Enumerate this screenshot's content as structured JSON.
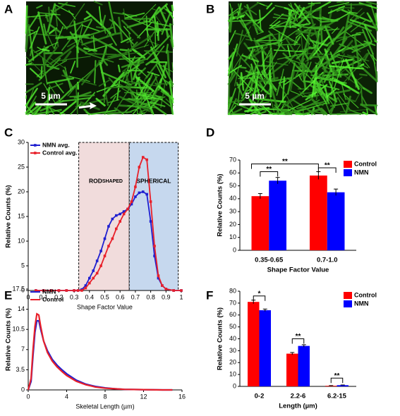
{
  "panel_labels": [
    "A",
    "B",
    "C",
    "D",
    "E",
    "F"
  ],
  "scale_bars": [
    "5 µm",
    "5 µm"
  ],
  "chart_data": [
    {
      "type": "line",
      "xlabel": "Shape Factor Value",
      "ylabel": "Relative Counts (%)",
      "x": [
        0.05,
        0.1,
        0.15,
        0.2,
        0.25,
        0.3,
        0.325,
        0.35,
        0.375,
        0.4,
        0.425,
        0.45,
        0.475,
        0.5,
        0.525,
        0.55,
        0.575,
        0.6,
        0.625,
        0.65,
        0.675,
        0.7,
        0.725,
        0.75,
        0.775,
        0.8,
        0.825,
        0.85,
        0.875,
        0.9,
        0.95,
        1.0
      ],
      "series": [
        {
          "name": "NMN avg.",
          "color": "#1f1fd0",
          "values": [
            0,
            0,
            0,
            0,
            0,
            0,
            0,
            0.2,
            1,
            2.5,
            4,
            6,
            8,
            10.5,
            13,
            14.5,
            15.2,
            15.5,
            16,
            16.5,
            17.5,
            19,
            19.8,
            20,
            19.5,
            14,
            7,
            2.5,
            1,
            0.3,
            0,
            0
          ]
        },
        {
          "name": "Control avg.",
          "color": "#e8202a",
          "values": [
            0,
            0,
            0,
            0,
            0,
            0,
            0,
            0,
            0.5,
            1.5,
            2.5,
            3.5,
            5,
            7,
            9,
            10.5,
            12.5,
            14,
            15.5,
            16.5,
            18,
            21,
            25,
            27,
            26.5,
            18,
            9,
            3,
            1,
            0.3,
            0,
            0
          ]
        }
      ],
      "regions": [
        {
          "label": "ROD",
          "sublabel": "SHAPED",
          "color": "#f1dcdc",
          "xlim": [
            0.33,
            0.66
          ]
        },
        {
          "label": "SPHERICAL",
          "color": "#c6d8ee",
          "xlim": [
            0.66,
            0.98
          ]
        }
      ],
      "markers": true,
      "legend": "upper left",
      "xlim": [
        0,
        1
      ],
      "xticks": [
        0,
        0.1,
        0.2,
        0.3,
        0.4,
        0.5,
        0.6,
        0.7,
        0.8,
        0.9,
        1
      ],
      "ylim": [
        0,
        30
      ],
      "yticks": [
        0,
        5,
        10,
        15,
        20,
        25,
        30
      ]
    },
    {
      "type": "bar",
      "xlabel": "Shape Factor Value",
      "ylabel": "Relative Counts (%)",
      "categories": [
        "0.35-0.65",
        "0.7-1.0"
      ],
      "series": [
        {
          "name": "Control",
          "color": "#ff0000",
          "values": [
            42,
            58
          ],
          "errors": [
            2,
            3
          ]
        },
        {
          "name": "NMN",
          "color": "#0000ff",
          "values": [
            54,
            45
          ],
          "errors": [
            2.5,
            2.5
          ]
        }
      ],
      "significance": [
        {
          "label": "**",
          "y": 67
        },
        {
          "label": "**",
          "y": 61
        },
        {
          "label": "**",
          "y": 64
        }
      ],
      "legend": "upper right",
      "ylim": [
        0,
        70
      ],
      "yticks": [
        0,
        10,
        20,
        30,
        40,
        50,
        60,
        70
      ]
    },
    {
      "type": "line",
      "xlabel": "Skeletal Length (µm)",
      "ylabel": "Relative Counts (%)",
      "x": [
        0,
        0.3,
        0.5,
        0.7,
        0.9,
        1.1,
        1.3,
        1.6,
        2,
        2.5,
        3,
        3.5,
        4,
        5,
        6,
        7,
        8,
        9,
        10,
        12,
        14,
        15
      ],
      "series": [
        {
          "name": "NMN",
          "color": "#1f1fd0",
          "values": [
            0,
            1.5,
            6,
            10,
            12,
            12,
            10.5,
            8.5,
            6.8,
            5.3,
            4.3,
            3.5,
            2.8,
            1.7,
            1,
            0.6,
            0.35,
            0.2,
            0.1,
            0.05,
            0,
            0
          ]
        },
        {
          "name": "Control",
          "color": "#e8202a",
          "values": [
            0,
            2,
            7,
            11,
            13.2,
            13,
            11,
            8.5,
            6.5,
            5,
            4,
            3.2,
            2.5,
            1.5,
            0.9,
            0.5,
            0.3,
            0.2,
            0.1,
            0.05,
            0,
            0
          ]
        }
      ],
      "markers": false,
      "legend": "upper left",
      "xlim": [
        0,
        16
      ],
      "xticks": [
        0,
        4,
        8,
        12,
        16
      ],
      "ylim": [
        0,
        17.5
      ],
      "yticks": [
        0,
        3.5,
        7,
        10.5,
        14,
        17.5
      ]
    },
    {
      "type": "bar",
      "xlabel": "Length (µm)",
      "ylabel": "Relative Counts (%)",
      "categories": [
        "0-2",
        "2.2-6",
        "6.2-15"
      ],
      "series": [
        {
          "name": "Control",
          "color": "#ff0000",
          "values": [
            71,
            27.5,
            0.5
          ],
          "errors": [
            1.5,
            1,
            0.2
          ]
        },
        {
          "name": "NMN",
          "color": "#0000ff",
          "values": [
            64,
            34,
            1
          ],
          "errors": [
            1,
            1,
            0.2
          ]
        }
      ],
      "significance": [
        {
          "label": "*",
          "y": 76
        },
        {
          "label": "**",
          "y": 40
        },
        {
          "label": "**",
          "y": 7
        }
      ],
      "legend": "upper right",
      "ylim": [
        0,
        80
      ],
      "yticks": [
        0,
        10,
        20,
        30,
        40,
        50,
        60,
        70,
        80
      ]
    }
  ]
}
